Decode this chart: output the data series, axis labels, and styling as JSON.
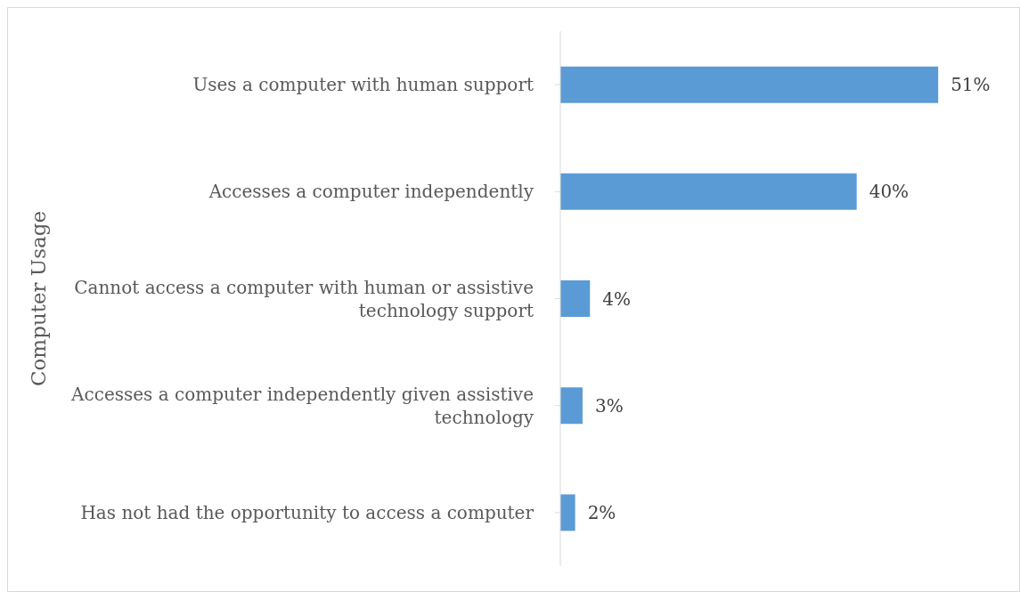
{
  "chart_data": {
    "type": "bar",
    "orientation": "horizontal",
    "ylabel": "Computer Usage",
    "categories": [
      "Uses a computer with human support",
      "Accesses a computer independently",
      "Cannot access a computer with human or assistive technology support",
      "Accesses a computer independently given assistive technology",
      "Has not had the opportunity to access a computer"
    ],
    "values": [
      51,
      40,
      4,
      3,
      2
    ],
    "value_labels": [
      "51%",
      "40%",
      "4%",
      "3%",
      "2%"
    ],
    "color": "#5b9bd5",
    "tick_labels": "y"
  }
}
